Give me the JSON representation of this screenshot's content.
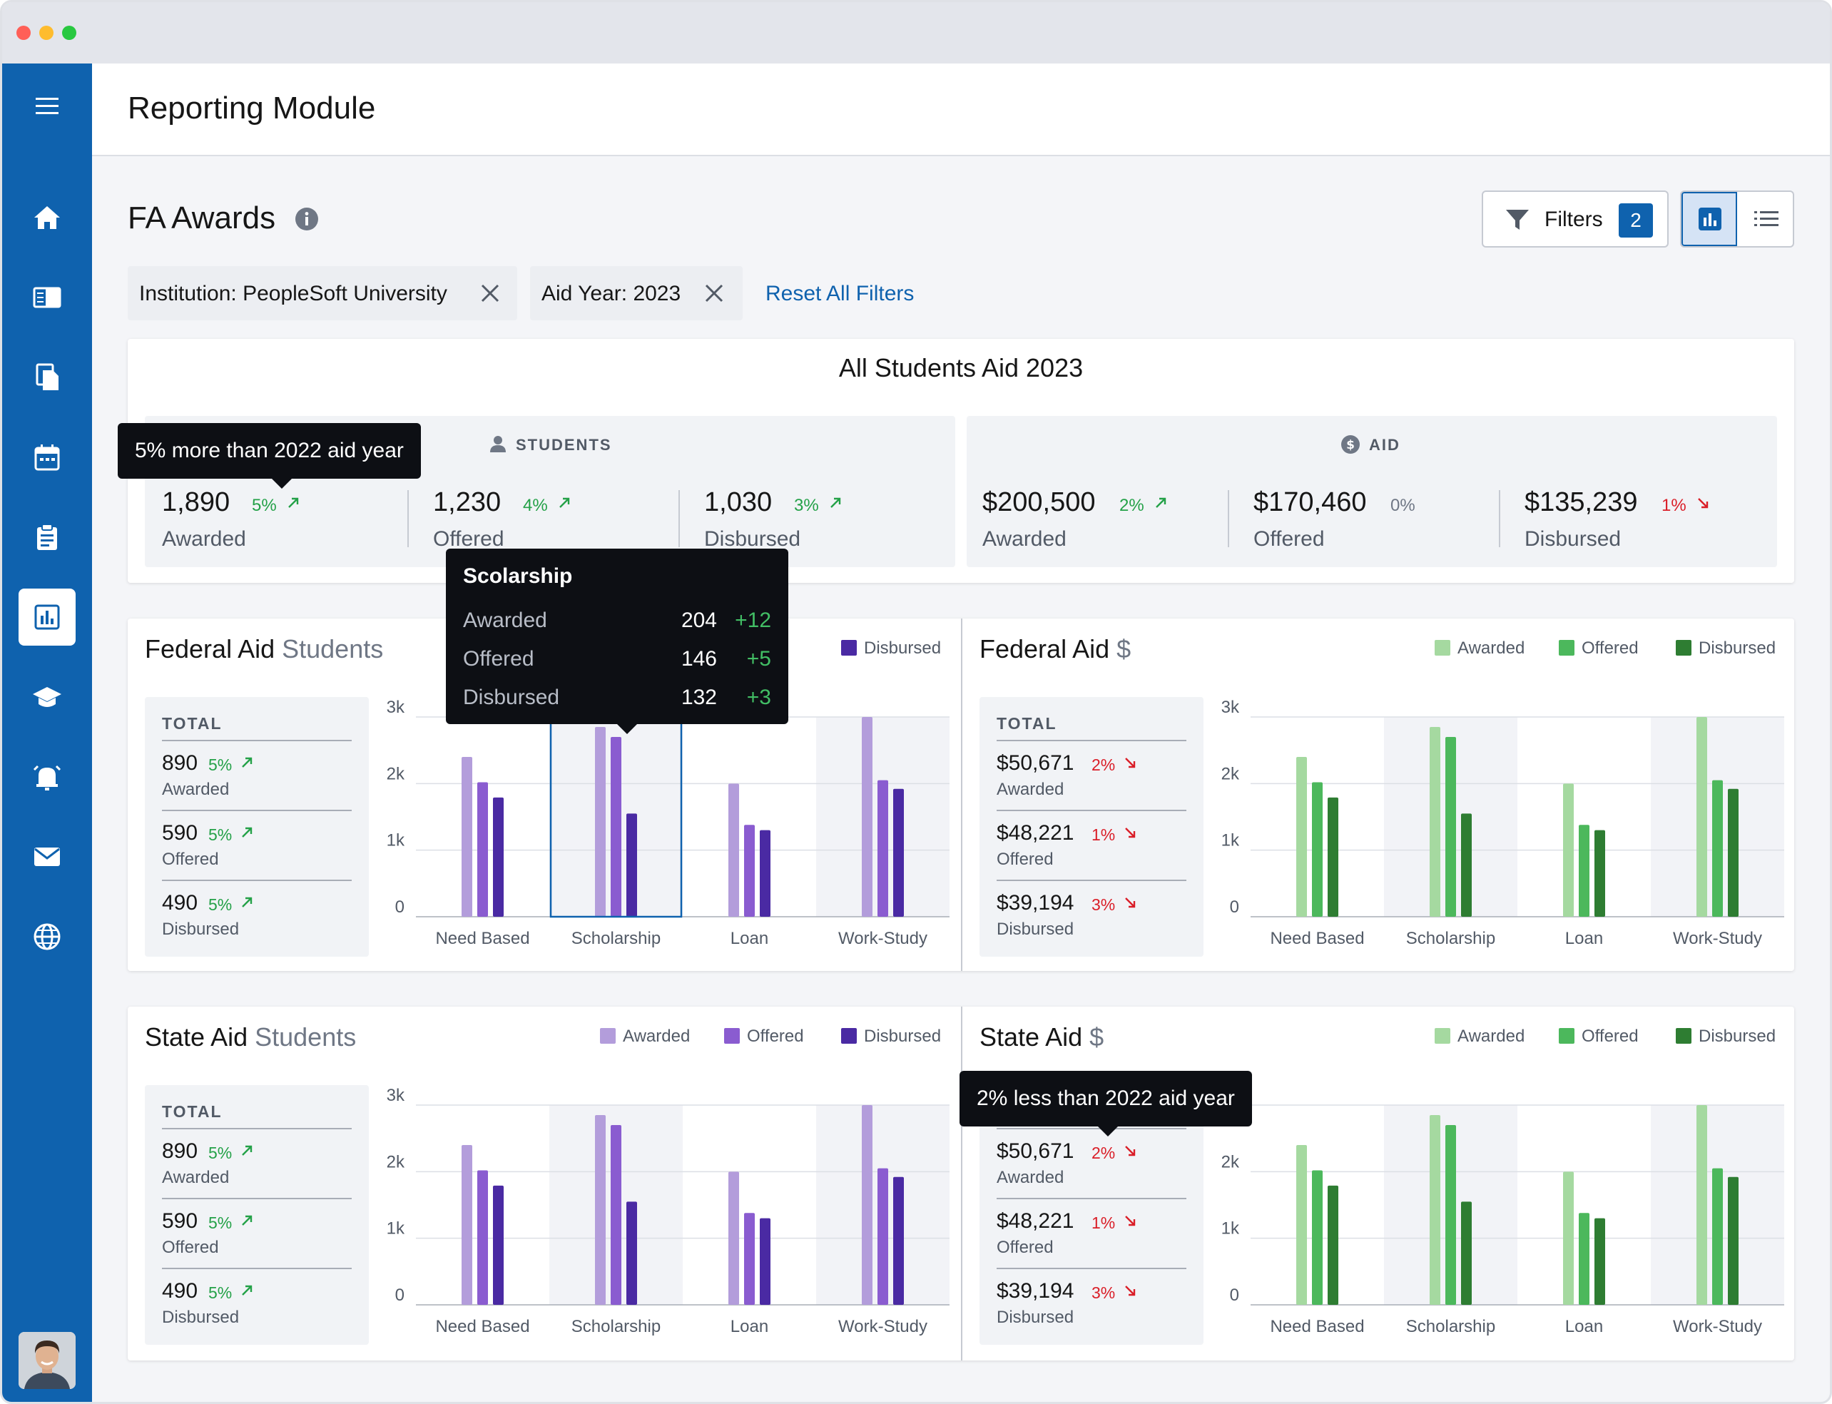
{
  "app": {
    "title": "Reporting Module"
  },
  "nav": [
    {
      "name": "home-icon"
    },
    {
      "name": "news-icon"
    },
    {
      "name": "documents-icon"
    },
    {
      "name": "calendar-icon"
    },
    {
      "name": "clipboard-icon"
    },
    {
      "name": "reports-icon",
      "active": true
    },
    {
      "name": "graduation-cap-icon"
    },
    {
      "name": "alarm-icon"
    },
    {
      "name": "mail-icon"
    },
    {
      "name": "globe-icon"
    }
  ],
  "page": {
    "title": "FA Awards"
  },
  "toolbar": {
    "filters_label": "Filters",
    "filters_count": "2"
  },
  "chips": [
    {
      "label": "Institution: PeopleSoft University"
    },
    {
      "label": "Aid Year: 2023"
    }
  ],
  "reset_label": "Reset All Filters",
  "summary": {
    "title": "All Students Aid 2023",
    "students": {
      "header": "STUDENTS",
      "metrics": [
        {
          "value": "1,890",
          "pct": "5%",
          "dir": "up",
          "label": "Awarded"
        },
        {
          "value": "1,230",
          "pct": "4%",
          "dir": "up",
          "label": "Offered"
        },
        {
          "value": "1,030",
          "pct": "3%",
          "dir": "up",
          "label": "Disbursed"
        }
      ]
    },
    "aid": {
      "header": "AID",
      "metrics": [
        {
          "value": "$200,500",
          "pct": "2%",
          "dir": "up",
          "label": "Awarded"
        },
        {
          "value": "$170,460",
          "pct": "0%",
          "dir": "flat",
          "label": "Offered"
        },
        {
          "value": "$135,239",
          "pct": "1%",
          "dir": "down",
          "label": "Disbursed"
        }
      ]
    }
  },
  "tooltips": {
    "students_awarded": "5% more than 2022 aid year",
    "state_aid_awarded": "2% less than 2022 aid year",
    "scholarship": {
      "title": "Scolarship",
      "rows": [
        {
          "label": "Awarded",
          "value": "204",
          "change": "+12"
        },
        {
          "label": "Offered",
          "value": "146",
          "change": "+5"
        },
        {
          "label": "Disbursed",
          "value": "132",
          "change": "+3"
        }
      ]
    }
  },
  "legend": {
    "awarded": "Awarded",
    "offered": "Offered",
    "disbursed": "Disbursed"
  },
  "colors": {
    "purple": [
      "#b39ddb",
      "#8a5cd0",
      "#4a2aa3"
    ],
    "green": [
      "#a5d9a0",
      "#4cb85c",
      "#2e7d32"
    ],
    "brand": "#0f62ae"
  },
  "charts": [
    {
      "id": "federal-students",
      "title": "Federal Aid",
      "accent": "Students",
      "totals_head": "TOTAL",
      "totals": [
        {
          "value": "890",
          "pct": "5%",
          "dir": "up",
          "label": "Awarded"
        },
        {
          "value": "590",
          "pct": "5%",
          "dir": "up",
          "label": "Offered"
        },
        {
          "value": "490",
          "pct": "5%",
          "dir": "up",
          "label": "Disbursed"
        }
      ]
    },
    {
      "id": "federal-dollars",
      "title": "Federal Aid",
      "accent": "$",
      "totals_head": "TOTAL",
      "totals": [
        {
          "value": "$50,671",
          "pct": "2%",
          "dir": "down",
          "label": "Awarded"
        },
        {
          "value": "$48,221",
          "pct": "1%",
          "dir": "down",
          "label": "Offered"
        },
        {
          "value": "$39,194",
          "pct": "3%",
          "dir": "down",
          "label": "Disbursed"
        }
      ]
    },
    {
      "id": "state-students",
      "title": "State Aid",
      "accent": "Students",
      "totals_head": "TOTAL",
      "totals": [
        {
          "value": "890",
          "pct": "5%",
          "dir": "up",
          "label": "Awarded"
        },
        {
          "value": "590",
          "pct": "5%",
          "dir": "up",
          "label": "Offered"
        },
        {
          "value": "490",
          "pct": "5%",
          "dir": "up",
          "label": "Disbursed"
        }
      ]
    },
    {
      "id": "state-dollars",
      "title": "State Aid",
      "accent": "$",
      "totals_head": "TOTAL",
      "totals": [
        {
          "value": "$50,671",
          "pct": "2%",
          "dir": "down",
          "label": "Awarded"
        },
        {
          "value": "$48,221",
          "pct": "1%",
          "dir": "down",
          "label": "Offered"
        },
        {
          "value": "$39,194",
          "pct": "3%",
          "dir": "down",
          "label": "Disbursed"
        }
      ]
    }
  ],
  "chart_data": {
    "type": "bar",
    "categories": [
      "Need Based",
      "Scholarship",
      "Loan",
      "Work-Study"
    ],
    "series": [
      {
        "name": "Awarded",
        "values": [
          2400,
          2850,
          2000,
          3000
        ]
      },
      {
        "name": "Offered",
        "values": [
          2020,
          2700,
          1380,
          2050
        ]
      },
      {
        "name": "Disbursed",
        "values": [
          1790,
          1550,
          1300,
          1920
        ]
      }
    ],
    "yticks": [
      "0",
      "1k",
      "2k",
      "3k"
    ],
    "ylim": [
      0,
      3000
    ],
    "highlighted_category": "Scholarship"
  }
}
